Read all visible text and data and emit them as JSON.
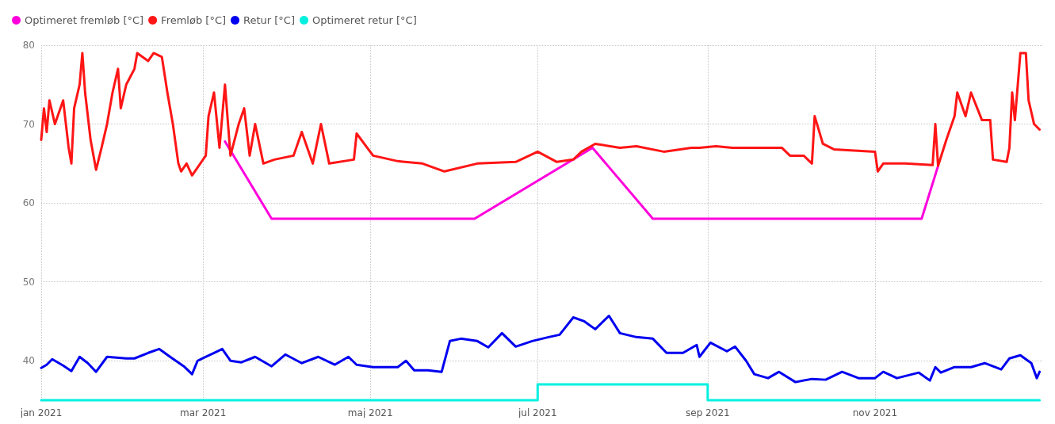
{
  "chart_data": {
    "type": "line",
    "legend": "top left",
    "grid": true,
    "marker": "none",
    "line_style": "solid",
    "xlim": [
      "2021-01-01",
      "2022-01-01"
    ],
    "xticks": [
      {
        "value": "2021-01-01",
        "label": "jan 2021"
      },
      {
        "value": "2021-03-01",
        "label": "mar 2021"
      },
      {
        "value": "2021-05-01",
        "label": "maj 2021"
      },
      {
        "value": "2021-07-01",
        "label": "jul 2021"
      },
      {
        "value": "2021-09-01",
        "label": "sep 2021"
      },
      {
        "value": "2021-11-01",
        "label": "nov 2021"
      }
    ],
    "ylim": [
      34.8,
      80
    ],
    "yticks": [
      40,
      50,
      60,
      70,
      80
    ],
    "series": [
      {
        "name": "Optimeret fremløb [°C]",
        "color": "#ff00dd",
        "x": [
          "2021-03-09",
          "2021-03-26",
          "2021-06-08",
          "2021-07-21",
          "2021-08-12",
          "2021-11-18",
          "2021-11-24"
        ],
        "values": [
          67.8,
          58,
          58,
          67,
          58,
          58,
          64.7
        ]
      },
      {
        "name": "Fremløb [°C]",
        "color": "#ff1515",
        "x": [
          "2021-01-01",
          "2021-01-02",
          "2021-01-03",
          "2021-01-04",
          "2021-01-06",
          "2021-01-09",
          "2021-01-10",
          "2021-01-11",
          "2021-01-12",
          "2021-01-13",
          "2021-01-15",
          "2021-01-16",
          "2021-01-17",
          "2021-01-19",
          "2021-01-21",
          "2021-01-23",
          "2021-01-25",
          "2021-01-27",
          "2021-01-29",
          "2021-01-30",
          "2021-02-01",
          "2021-02-04",
          "2021-02-05",
          "2021-02-09",
          "2021-02-11",
          "2021-02-14",
          "2021-02-16",
          "2021-02-18",
          "2021-02-20",
          "2021-02-21",
          "2021-02-23",
          "2021-02-25",
          "2021-02-27",
          "2021-03-02",
          "2021-03-03",
          "2021-03-05",
          "2021-03-07",
          "2021-03-09",
          "2021-03-11",
          "2021-03-14",
          "2021-03-16",
          "2021-03-18",
          "2021-03-20",
          "2021-03-23",
          "2021-03-27",
          "2021-04-03",
          "2021-04-06",
          "2021-04-10",
          "2021-04-13",
          "2021-04-16",
          "2021-04-25",
          "2021-04-26",
          "2021-05-02",
          "2021-05-11",
          "2021-05-20",
          "2021-05-28",
          "2021-06-09",
          "2021-06-23",
          "2021-07-01",
          "2021-07-08",
          "2021-07-14",
          "2021-07-17",
          "2021-07-22",
          "2021-07-31",
          "2021-08-06",
          "2021-08-16",
          "2021-08-26",
          "2021-08-29",
          "2021-09-04",
          "2021-09-10",
          "2021-09-28",
          "2021-10-01",
          "2021-10-06",
          "2021-10-09",
          "2021-10-10",
          "2021-10-13",
          "2021-10-17",
          "2021-11-01",
          "2021-11-02",
          "2021-11-04",
          "2021-11-12",
          "2021-11-22",
          "2021-11-23",
          "2021-11-24",
          "2021-11-27",
          "2021-11-30",
          "2021-12-01",
          "2021-12-04",
          "2021-12-06",
          "2021-12-10",
          "2021-12-13",
          "2021-12-14",
          "2021-12-19",
          "2021-12-20",
          "2021-12-21",
          "2021-12-22",
          "2021-12-24",
          "2021-12-26",
          "2021-12-27",
          "2021-12-29",
          "2021-12-31"
        ],
        "values": [
          68,
          72,
          69,
          73,
          70,
          73,
          70,
          67,
          65,
          72,
          75,
          79,
          74,
          68,
          64.2,
          67,
          70,
          74,
          77,
          72,
          75,
          77,
          79,
          78,
          79,
          78.5,
          74,
          70,
          65,
          64,
          65,
          63.5,
          64.5,
          66,
          71,
          74,
          67,
          75,
          66,
          70,
          72,
          66,
          70,
          65,
          65.5,
          66,
          69,
          65,
          70,
          65,
          65.5,
          68.8,
          66,
          65.3,
          65,
          64,
          65,
          65.2,
          66.5,
          65.2,
          65.5,
          66.5,
          67.5,
          67,
          67.2,
          66.5,
          67,
          67,
          67.2,
          67,
          67,
          66,
          66,
          65,
          71,
          67.5,
          66.8,
          66.5,
          64,
          65,
          65,
          64.8,
          70,
          64.7,
          68,
          71,
          74,
          71,
          74,
          70.5,
          70.5,
          65.5,
          65.2,
          67,
          74,
          70.5,
          79,
          79,
          73,
          70,
          69.3
        ]
      },
      {
        "name": "Retur [°C]",
        "color": "#0000f0",
        "x": [
          "2021-01-01",
          "2021-01-03",
          "2021-01-05",
          "2021-01-09",
          "2021-01-12",
          "2021-01-15",
          "2021-01-18",
          "2021-01-21",
          "2021-01-25",
          "2021-02-01",
          "2021-02-04",
          "2021-02-09",
          "2021-02-13",
          "2021-02-17",
          "2021-02-22",
          "2021-02-25",
          "2021-02-27",
          "2021-03-05",
          "2021-03-08",
          "2021-03-11",
          "2021-03-15",
          "2021-03-20",
          "2021-03-26",
          "2021-03-31",
          "2021-04-06",
          "2021-04-12",
          "2021-04-18",
          "2021-04-23",
          "2021-04-26",
          "2021-05-02",
          "2021-05-11",
          "2021-05-14",
          "2021-05-17",
          "2021-05-22",
          "2021-05-27",
          "2021-05-30",
          "2021-06-03",
          "2021-06-09",
          "2021-06-13",
          "2021-06-18",
          "2021-06-23",
          "2021-06-29",
          "2021-07-05",
          "2021-07-09",
          "2021-07-14",
          "2021-07-18",
          "2021-07-22",
          "2021-07-27",
          "2021-07-31",
          "2021-08-06",
          "2021-08-12",
          "2021-08-17",
          "2021-08-23",
          "2021-08-28",
          "2021-08-29",
          "2021-09-02",
          "2021-09-08",
          "2021-09-11",
          "2021-09-15",
          "2021-09-18",
          "2021-09-23",
          "2021-09-27",
          "2021-10-03",
          "2021-10-09",
          "2021-10-14",
          "2021-10-20",
          "2021-10-26",
          "2021-11-01",
          "2021-11-04",
          "2021-11-09",
          "2021-11-17",
          "2021-11-21",
          "2021-11-23",
          "2021-11-25",
          "2021-11-30",
          "2021-12-06",
          "2021-12-11",
          "2021-12-17",
          "2021-12-20",
          "2021-12-24",
          "2021-12-28",
          "2021-12-30",
          "2021-12-31"
        ],
        "values": [
          39.1,
          39.5,
          40.2,
          39.4,
          38.7,
          40.5,
          39.7,
          38.6,
          40.5,
          40.3,
          40.3,
          41,
          41.5,
          40.5,
          39.3,
          38.3,
          40,
          41,
          41.5,
          40,
          39.8,
          40.5,
          39.3,
          40.8,
          39.7,
          40.5,
          39.5,
          40.5,
          39.5,
          39.2,
          39.2,
          40,
          38.8,
          38.8,
          38.6,
          42.5,
          42.8,
          42.5,
          41.7,
          43.5,
          41.8,
          42.5,
          43,
          43.3,
          45.5,
          45,
          44,
          45.7,
          43.5,
          43,
          42.8,
          41,
          41,
          42,
          40.5,
          42.3,
          41.2,
          41.8,
          40,
          38.3,
          37.8,
          38.6,
          37.3,
          37.7,
          37.6,
          38.6,
          37.8,
          37.8,
          38.6,
          37.8,
          38.5,
          37.5,
          39.2,
          38.5,
          39.2,
          39.2,
          39.7,
          38.9,
          40.3,
          40.7,
          39.7,
          37.8,
          38.6
        ]
      },
      {
        "name": "Optimeret retur [°C]",
        "color": "#00f0e0",
        "type": "step",
        "x": [
          "2021-01-01",
          "2021-07-01",
          "2021-09-01",
          "2021-12-31"
        ],
        "values": [
          35,
          37,
          35,
          35
        ]
      }
    ]
  }
}
